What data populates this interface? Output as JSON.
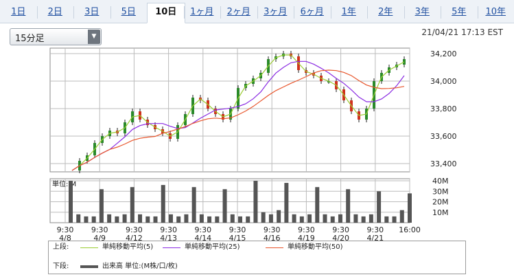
{
  "tabs": [
    "1日",
    "2日",
    "3日",
    "5日",
    "10日",
    "1ヶ月",
    "2ヶ月",
    "3ヶ月",
    "6ヶ月",
    "1年",
    "2年",
    "3年",
    "5年",
    "10年"
  ],
  "active_tab": "10日",
  "interval_select": "15分足",
  "timestamp": "21/04/21 17:13 EST",
  "legend": {
    "upper_label": "上段:",
    "lower_label": "下段:",
    "ma5": "単純移動平均(5)",
    "ma25": "単純移動平均(25)",
    "ma50": "単純移動平均(50)",
    "volume": "出来高 単位:(M株/口/枚)",
    "colors": {
      "ma5": "#9acd32",
      "ma25": "#8a2be2",
      "ma50": "#e8552b",
      "volume": "#555555",
      "candle_up": "#2a8a2a",
      "candle_down": "#d0321d"
    }
  },
  "chart_data": {
    "type": "line",
    "price_axis": {
      "ticks": [
        33400,
        33600,
        33800,
        34000,
        34200
      ],
      "ylim": [
        33340,
        34240
      ]
    },
    "volume_axis": {
      "unit_label": "単位: M",
      "ticks": [
        "40M",
        "30M",
        "20M",
        "10M"
      ],
      "ylim": [
        0,
        42
      ]
    },
    "x_tick_labels": [
      {
        "time": "9:30",
        "date": "4/8"
      },
      {
        "time": "9:30",
        "date": "4/9"
      },
      {
        "time": "9:30",
        "date": "4/12"
      },
      {
        "time": "9:30",
        "date": "4/13"
      },
      {
        "time": "9:30",
        "date": "4/14"
      },
      {
        "time": "9:30",
        "date": "4/15"
      },
      {
        "time": "9:30",
        "date": "4/16"
      },
      {
        "time": "9:30",
        "date": "4/19"
      },
      {
        "time": "9:30",
        "date": "4/20"
      },
      {
        "time": "9:30",
        "date": "4/21"
      },
      {
        "time": "16:00",
        "date": ""
      }
    ],
    "price_series": [
      {
        "name": "price",
        "values": [
          33350,
          33420,
          33460,
          33550,
          33600,
          33640,
          33620,
          33700,
          33780,
          33720,
          33680,
          33650,
          33620,
          33580,
          33680,
          33760,
          33880,
          33860,
          33800,
          33760,
          33720,
          33800,
          33950,
          33980,
          34020,
          34060,
          34160,
          34180,
          34200,
          34180,
          34080,
          34060,
          34040,
          34000,
          34000,
          33940,
          33860,
          33780,
          33720,
          33800,
          34000,
          34060,
          34100,
          34120,
          34160
        ]
      }
    ],
    "volume_values": [
      40,
      8,
      6,
      6,
      32,
      8,
      6,
      8,
      34,
      8,
      6,
      6,
      36,
      8,
      6,
      8,
      34,
      8,
      6,
      6,
      32,
      8,
      6,
      6,
      40,
      10,
      8,
      12,
      38,
      8,
      6,
      8,
      34,
      8,
      6,
      8,
      32,
      8,
      6,
      8,
      30,
      6,
      6,
      12,
      28
    ]
  }
}
